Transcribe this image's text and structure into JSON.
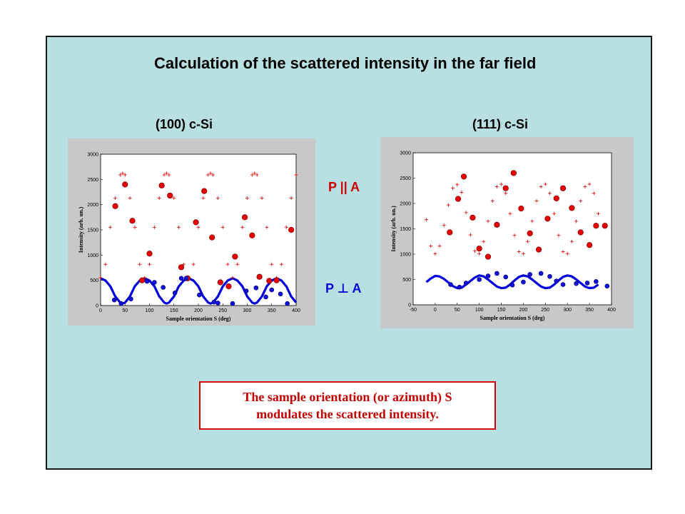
{
  "slide": {
    "title": "Calculation of the scattered intensity in the far field",
    "left_panel_title": "(100) c-Si",
    "right_panel_title": "(111) c-Si",
    "label_parallel": "P || A",
    "label_perpendicular": "P ⊥ A",
    "note_line1": "The sample orientation (or azimuth) S",
    "note_line2": "modulates the scattered intensity.",
    "background_color": "#b8dfe2",
    "accent_red": "#e00000",
    "accent_blue": "#0000e0"
  },
  "chart_data": [
    {
      "type": "scatter",
      "panel": "(100) c-Si",
      "xlabel": "Sample orientation S (deg)",
      "ylabel": "Intensity (arb. un.)",
      "xlim": [
        0,
        400
      ],
      "ylim": [
        0,
        3000
      ],
      "xticks": [
        0,
        50,
        100,
        150,
        200,
        250,
        300,
        350,
        400
      ],
      "yticks": [
        0,
        500,
        1000,
        1500,
        2000,
        2500,
        3000
      ],
      "series": [
        {
          "role": "P || A model",
          "color": "#e00000",
          "style": "plus-markers",
          "x": [
            0,
            10,
            20,
            30,
            40,
            45,
            50,
            60,
            70,
            80,
            90,
            100,
            110,
            120,
            130,
            135,
            140,
            150,
            160,
            170,
            180,
            190,
            200,
            210,
            220,
            225,
            230,
            240,
            250,
            260,
            270,
            280,
            290,
            300,
            310,
            315,
            320,
            330,
            340,
            350,
            360,
            370,
            380,
            390,
            400
          ],
          "y": [
            550,
            818,
            1552,
            2130,
            2590,
            2620,
            2590,
            2130,
            1552,
            818,
            550,
            818,
            1552,
            2130,
            2590,
            2620,
            2590,
            2130,
            1552,
            818,
            550,
            818,
            1552,
            2130,
            2590,
            2620,
            2590,
            2130,
            1552,
            818,
            550,
            818,
            1552,
            2130,
            2590,
            2620,
            2590,
            2130,
            1552,
            818,
            550,
            818,
            1552,
            2130,
            2590
          ]
        },
        {
          "role": "P ⊥ A model",
          "color": "#0000e0",
          "style": "thick-line",
          "x": [
            0,
            10,
            20,
            30,
            40,
            45,
            50,
            60,
            70,
            80,
            90,
            100,
            110,
            120,
            130,
            135,
            140,
            150,
            160,
            170,
            180,
            190,
            200,
            210,
            220,
            225,
            230,
            240,
            250,
            260,
            270,
            280,
            290,
            300,
            310,
            315,
            320,
            330,
            340,
            350,
            360,
            370,
            380,
            390,
            400
          ],
          "y": [
            540,
            495,
            380,
            180,
            60,
            40,
            60,
            180,
            380,
            495,
            540,
            495,
            380,
            180,
            60,
            40,
            60,
            180,
            380,
            495,
            540,
            495,
            380,
            180,
            60,
            40,
            60,
            180,
            380,
            495,
            540,
            495,
            380,
            180,
            60,
            40,
            60,
            180,
            380,
            495,
            540,
            495,
            380,
            180,
            60
          ]
        },
        {
          "role": "P || A data",
          "color": "#e00000",
          "style": "filled-circles",
          "x": [
            30,
            50,
            65,
            85,
            100,
            125,
            142,
            165,
            178,
            195,
            212,
            228,
            245,
            262,
            275,
            295,
            310,
            325,
            345,
            360,
            390
          ],
          "y": [
            1970,
            2400,
            1680,
            500,
            1030,
            2380,
            2180,
            760,
            540,
            1650,
            2270,
            1350,
            460,
            380,
            970,
            1750,
            1390,
            570,
            490,
            500,
            1500
          ]
        },
        {
          "role": "P ⊥ A data",
          "color": "#0000e0",
          "style": "filled-circles",
          "x": [
            28,
            42,
            62,
            95,
            110,
            128,
            152,
            165,
            175,
            202,
            232,
            240,
            270,
            298,
            318,
            338,
            350,
            368,
            382
          ],
          "y": [
            110,
            40,
            130,
            480,
            460,
            360,
            250,
            540,
            540,
            210,
            70,
            50,
            40,
            290,
            350,
            170,
            310,
            230,
            40
          ]
        }
      ]
    },
    {
      "type": "scatter",
      "panel": "(111) c-Si",
      "xlabel": "Sample orientation S (deg)",
      "ylabel": "Intensity (arb. un.)",
      "xlim": [
        -50,
        400
      ],
      "ylim": [
        0,
        3000
      ],
      "xticks": [
        -50,
        0,
        50,
        100,
        150,
        200,
        250,
        300,
        350,
        400
      ],
      "yticks": [
        0,
        500,
        1000,
        1500,
        2000,
        2500,
        3000
      ],
      "series": [
        {
          "role": "P || A model",
          "color": "#e00000",
          "style": "plus-markers",
          "x": [
            -20,
            -10,
            0,
            10,
            20,
            30,
            40,
            50,
            60,
            70,
            80,
            90,
            100,
            110,
            120,
            130,
            140,
            150,
            160,
            170,
            180,
            190,
            200,
            210,
            220,
            230,
            240,
            250,
            260,
            270,
            280,
            290,
            300,
            310,
            320,
            330,
            340,
            350,
            360,
            370
          ],
          "y": [
            1680,
            1160,
            1010,
            1160,
            1570,
            1970,
            2300,
            2370,
            2220,
            1820,
            1380,
            1060,
            1010,
            1250,
            1650,
            2050,
            2330,
            2380,
            2200,
            1800,
            1370,
            1050,
            1010,
            1250,
            1650,
            2050,
            2330,
            2380,
            2200,
            1800,
            1370,
            1050,
            1010,
            1250,
            1650,
            2050,
            2330,
            2380,
            2200,
            1800
          ]
        },
        {
          "role": "P ⊥ A model",
          "color": "#0000e0",
          "style": "thick-line",
          "x": [
            -20,
            -10,
            0,
            10,
            20,
            30,
            40,
            50,
            60,
            70,
            80,
            90,
            100,
            110,
            120,
            130,
            140,
            150,
            160,
            170,
            180,
            190,
            200,
            210,
            220,
            230,
            240,
            250,
            260,
            270,
            280,
            290,
            300,
            310,
            320,
            330,
            340,
            350,
            360,
            370
          ],
          "y": [
            450,
            520,
            570,
            560,
            510,
            440,
            370,
            330,
            340,
            400,
            470,
            540,
            580,
            560,
            500,
            430,
            360,
            330,
            340,
            400,
            480,
            550,
            580,
            560,
            500,
            430,
            360,
            330,
            340,
            400,
            480,
            550,
            580,
            560,
            500,
            430,
            360,
            330,
            340,
            400
          ]
        },
        {
          "role": "P || A data",
          "color": "#e00000",
          "style": "filled-circles",
          "x": [
            33,
            52,
            65,
            85,
            100,
            120,
            140,
            160,
            178,
            195,
            215,
            235,
            255,
            275,
            290,
            310,
            330,
            350,
            365,
            385
          ],
          "y": [
            1430,
            2090,
            2530,
            1720,
            1110,
            950,
            1580,
            2300,
            2600,
            1900,
            1410,
            1090,
            1700,
            2100,
            2300,
            1910,
            1430,
            1180,
            1560,
            1560
          ]
        },
        {
          "role": "P ⊥ A data",
          "color": "#0000e0",
          "style": "filled-circles",
          "x": [
            35,
            55,
            70,
            100,
            120,
            140,
            160,
            175,
            200,
            215,
            240,
            260,
            275,
            290,
            320,
            345,
            365,
            390
          ],
          "y": [
            400,
            350,
            430,
            500,
            570,
            620,
            550,
            390,
            450,
            600,
            620,
            560,
            470,
            400,
            420,
            430,
            460,
            370
          ]
        }
      ]
    }
  ]
}
